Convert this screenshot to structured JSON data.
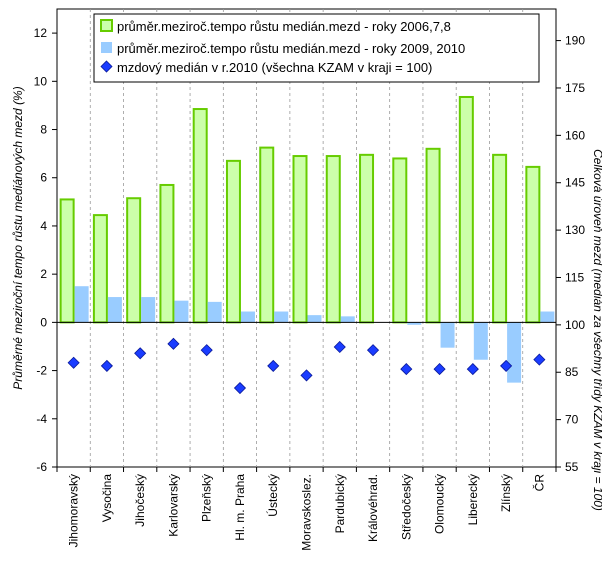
{
  "chart_data": {
    "type": "bar",
    "categories": [
      "Jihomoravský",
      "Vysočina",
      "Jihočeský",
      "Karlovarský",
      "Plzeňský",
      "Hl. m. Praha",
      "Ústecký",
      "Moravskoslez.",
      "Pardubický",
      "Královéhrad.",
      "Středočeský",
      "Olomoucký",
      "Liberecký",
      "Zlínský",
      "ČR"
    ],
    "series": [
      {
        "name": "průměr.meziroč.tempo růstu medián.mezd - roky 2006,7,8",
        "axis": "left",
        "kind": "bar",
        "color": "#ccffaa",
        "border_color": "#66cc00",
        "values": [
          5.1,
          4.45,
          5.15,
          5.7,
          8.85,
          6.7,
          7.25,
          6.9,
          6.9,
          6.95,
          6.8,
          7.2,
          9.35,
          6.95,
          6.45
        ]
      },
      {
        "name": "průměr.meziroč.tempo růstu medián.mezd - roky 2009, 2010",
        "axis": "left",
        "kind": "bar",
        "color": "#99ccff",
        "values": [
          1.5,
          1.05,
          1.05,
          0.9,
          0.85,
          0.45,
          0.45,
          0.3,
          0.25,
          0.0,
          -0.1,
          -1.05,
          -1.55,
          -2.5,
          0.45
        ]
      },
      {
        "name": "mzdový medián v r.2010 (všechna KZAM v kraji = 100)",
        "axis": "right",
        "kind": "marker",
        "color": "#1a3cff",
        "values": [
          88,
          87,
          91,
          94,
          92,
          80,
          87,
          84,
          93,
          92,
          86,
          86,
          86,
          87,
          89
        ]
      }
    ],
    "ylabel": "Průměrné meziroční tempo růstu mediánových mezd (%)",
    "y2label": "Celková úroveň mezd (medián za všechny třídy KZAM v kraji = 100)",
    "ylim": [
      -6,
      13
    ],
    "y2lim": [
      55,
      200
    ],
    "yticks": [
      -6,
      -4,
      -2,
      0,
      2,
      4,
      6,
      8,
      10,
      12
    ],
    "y2ticks": [
      55,
      70,
      85,
      100,
      115,
      130,
      145,
      160,
      175,
      190
    ],
    "grid": "vertical dashed",
    "legend_position": "top"
  }
}
